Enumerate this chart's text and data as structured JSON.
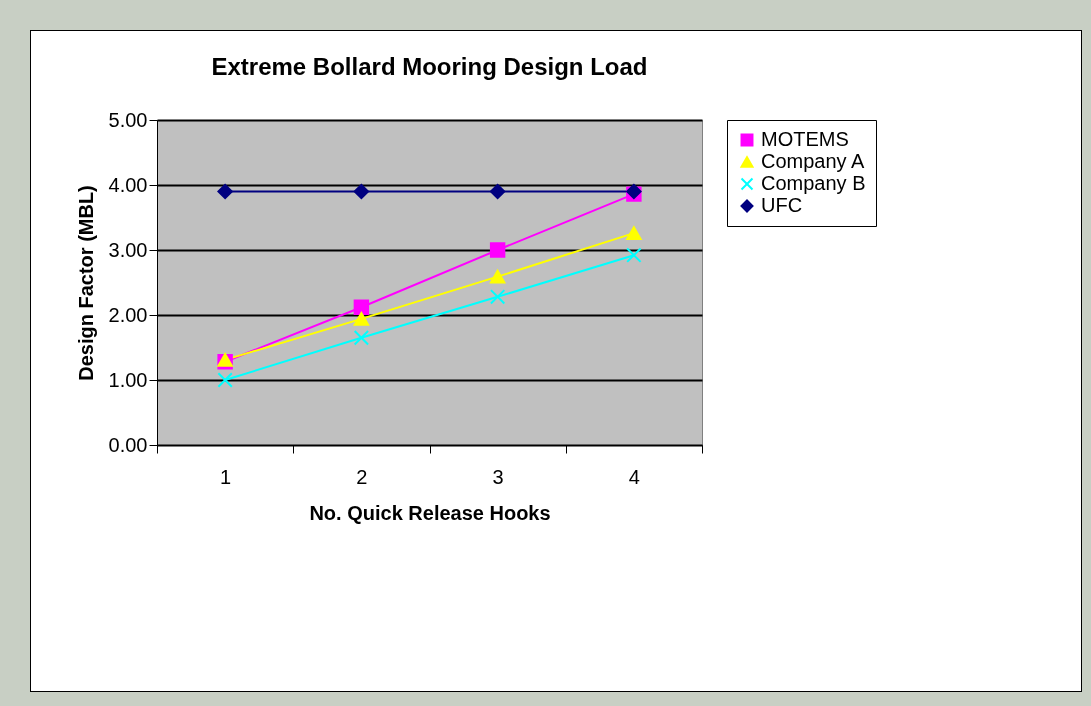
{
  "chart_data": {
    "type": "line",
    "title": "Extreme Bollard Mooring Design Load",
    "xlabel": "No. Quick Release Hooks",
    "ylabel": "Design Factor (MBL)",
    "categories": [
      "1",
      "2",
      "3",
      "4"
    ],
    "series": [
      {
        "name": "MOTEMS",
        "color": "#ff00ff",
        "marker": "square",
        "values": [
          1.28,
          2.12,
          3.0,
          3.86
        ]
      },
      {
        "name": "Company A",
        "color": "#ffff00",
        "marker": "triangle",
        "values": [
          1.31,
          1.94,
          2.59,
          3.26
        ]
      },
      {
        "name": "Company B",
        "color": "#00ffff",
        "marker": "cross",
        "values": [
          1.0,
          1.65,
          2.28,
          2.92
        ]
      },
      {
        "name": "UFC",
        "color": "#000080",
        "marker": "diamond",
        "values": [
          3.9,
          3.9,
          3.9,
          3.9
        ]
      }
    ],
    "ylim": [
      0,
      5
    ],
    "yticks": [
      {
        "value": 0,
        "label": "0.00"
      },
      {
        "value": 1,
        "label": "1.00"
      },
      {
        "value": 2,
        "label": "2.00"
      },
      {
        "value": 3,
        "label": "3.00"
      },
      {
        "value": 4,
        "label": "4.00"
      },
      {
        "value": 5,
        "label": "5.00"
      }
    ],
    "grid": "y",
    "legend": "right"
  }
}
